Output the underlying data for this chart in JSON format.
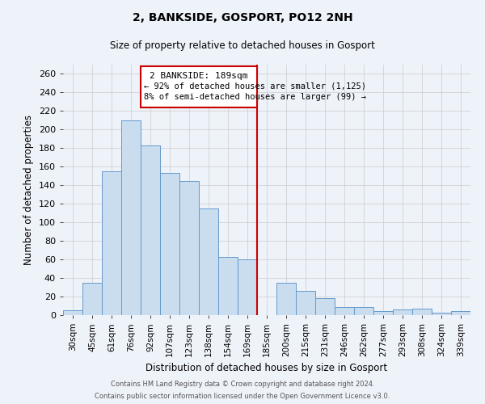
{
  "title": "2, BANKSIDE, GOSPORT, PO12 2NH",
  "subtitle": "Size of property relative to detached houses in Gosport",
  "xlabel": "Distribution of detached houses by size in Gosport",
  "ylabel": "Number of detached properties",
  "categories": [
    "30sqm",
    "45sqm",
    "61sqm",
    "76sqm",
    "92sqm",
    "107sqm",
    "123sqm",
    "138sqm",
    "154sqm",
    "169sqm",
    "185sqm",
    "200sqm",
    "215sqm",
    "231sqm",
    "246sqm",
    "262sqm",
    "277sqm",
    "293sqm",
    "308sqm",
    "324sqm",
    "339sqm"
  ],
  "values": [
    5,
    35,
    155,
    210,
    183,
    153,
    145,
    115,
    63,
    60,
    0,
    35,
    26,
    18,
    9,
    9,
    4,
    6,
    7,
    3,
    4
  ],
  "bar_color": "#c9ddef",
  "bar_edge_color": "#6699cc",
  "red_line_index": 10,
  "annotation_title": "2 BANKSIDE: 189sqm",
  "annotation_line1": "← 92% of detached houses are smaller (1,125)",
  "annotation_line2": "8% of semi-detached houses are larger (99) →",
  "annotation_box_edge": "#cc0000",
  "ylim": [
    0,
    270
  ],
  "yticks": [
    0,
    20,
    40,
    60,
    80,
    100,
    120,
    140,
    160,
    180,
    200,
    220,
    240,
    260
  ],
  "footer_line1": "Contains HM Land Registry data © Crown copyright and database right 2024.",
  "footer_line2": "Contains public sector information licensed under the Open Government Licence v3.0.",
  "background_color": "#eef2f9",
  "grid_color": "#cccccc"
}
